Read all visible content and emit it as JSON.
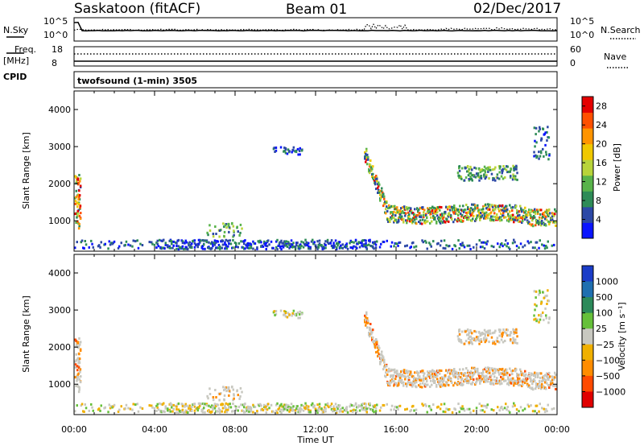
{
  "header": {
    "station": "Saskatoon (fitACF)",
    "beam": "Beam 01",
    "date": "02/Dec/2017"
  },
  "top_panels": {
    "nsky_label": "N.Sky",
    "nsearch_label": "N.Search",
    "freq_label_1": "Freq.",
    "freq_label_2": "[MHz]",
    "nave_label": "Nave",
    "cpid_label": "CPID",
    "cpid_value": "twofsound (1-min) 3505",
    "noise_ticks_left": [
      "10^5",
      "10^0"
    ],
    "noise_ticks_right": [
      "10^5",
      "10^0"
    ],
    "freq_ticks": [
      "18",
      "8"
    ],
    "nave_ticks": [
      "60",
      "0"
    ]
  },
  "legend_colors": {
    "power": [
      "#0a14ff",
      "#2c48a6",
      "#2e8b57",
      "#58b34a",
      "#b8d43a",
      "#f0c800",
      "#ff9400",
      "#ff5000",
      "#e40000"
    ],
    "velocity": [
      "#1a3cc8",
      "#1f6fb0",
      "#2c8a5a",
      "#66c03a",
      "#c8c8c0",
      "#f0b000",
      "#ff8c00",
      "#ff4a00",
      "#e00000"
    ]
  },
  "chart_data": [
    {
      "type": "heatmap",
      "name_text": "power",
      "xlabel": "",
      "ylabel": "Slant Range [km]",
      "x_ticks": [
        "00:00",
        "04:00",
        "08:00",
        "12:00",
        "16:00",
        "20:00",
        "00:00"
      ],
      "y_ticks": [
        "1000",
        "2000",
        "3000",
        "4000"
      ],
      "ylim": [
        180,
        4500
      ],
      "xlim_hours": [
        0,
        24
      ],
      "colorbar_label": "Power [dB]",
      "colorbar_ticks": [
        "4",
        "8",
        "12",
        "16",
        "20",
        "24",
        "28"
      ],
      "colorbar_range": [
        0,
        30
      ]
    },
    {
      "type": "heatmap",
      "name_text": "velocity",
      "xlabel": "Time UT",
      "ylabel": "Slant Range [km]",
      "x_ticks": [
        "00:00",
        "04:00",
        "08:00",
        "12:00",
        "16:00",
        "20:00",
        "00:00"
      ],
      "y_ticks": [
        "1000",
        "2000",
        "3000",
        "4000"
      ],
      "ylim": [
        180,
        4500
      ],
      "xlim_hours": [
        0,
        24
      ],
      "colorbar_label": "Velocity [m s⁻¹]",
      "colorbar_ticks": [
        "1000",
        "500",
        "100",
        "25",
        "−25",
        "−100",
        "−500",
        "−1000"
      ]
    }
  ]
}
